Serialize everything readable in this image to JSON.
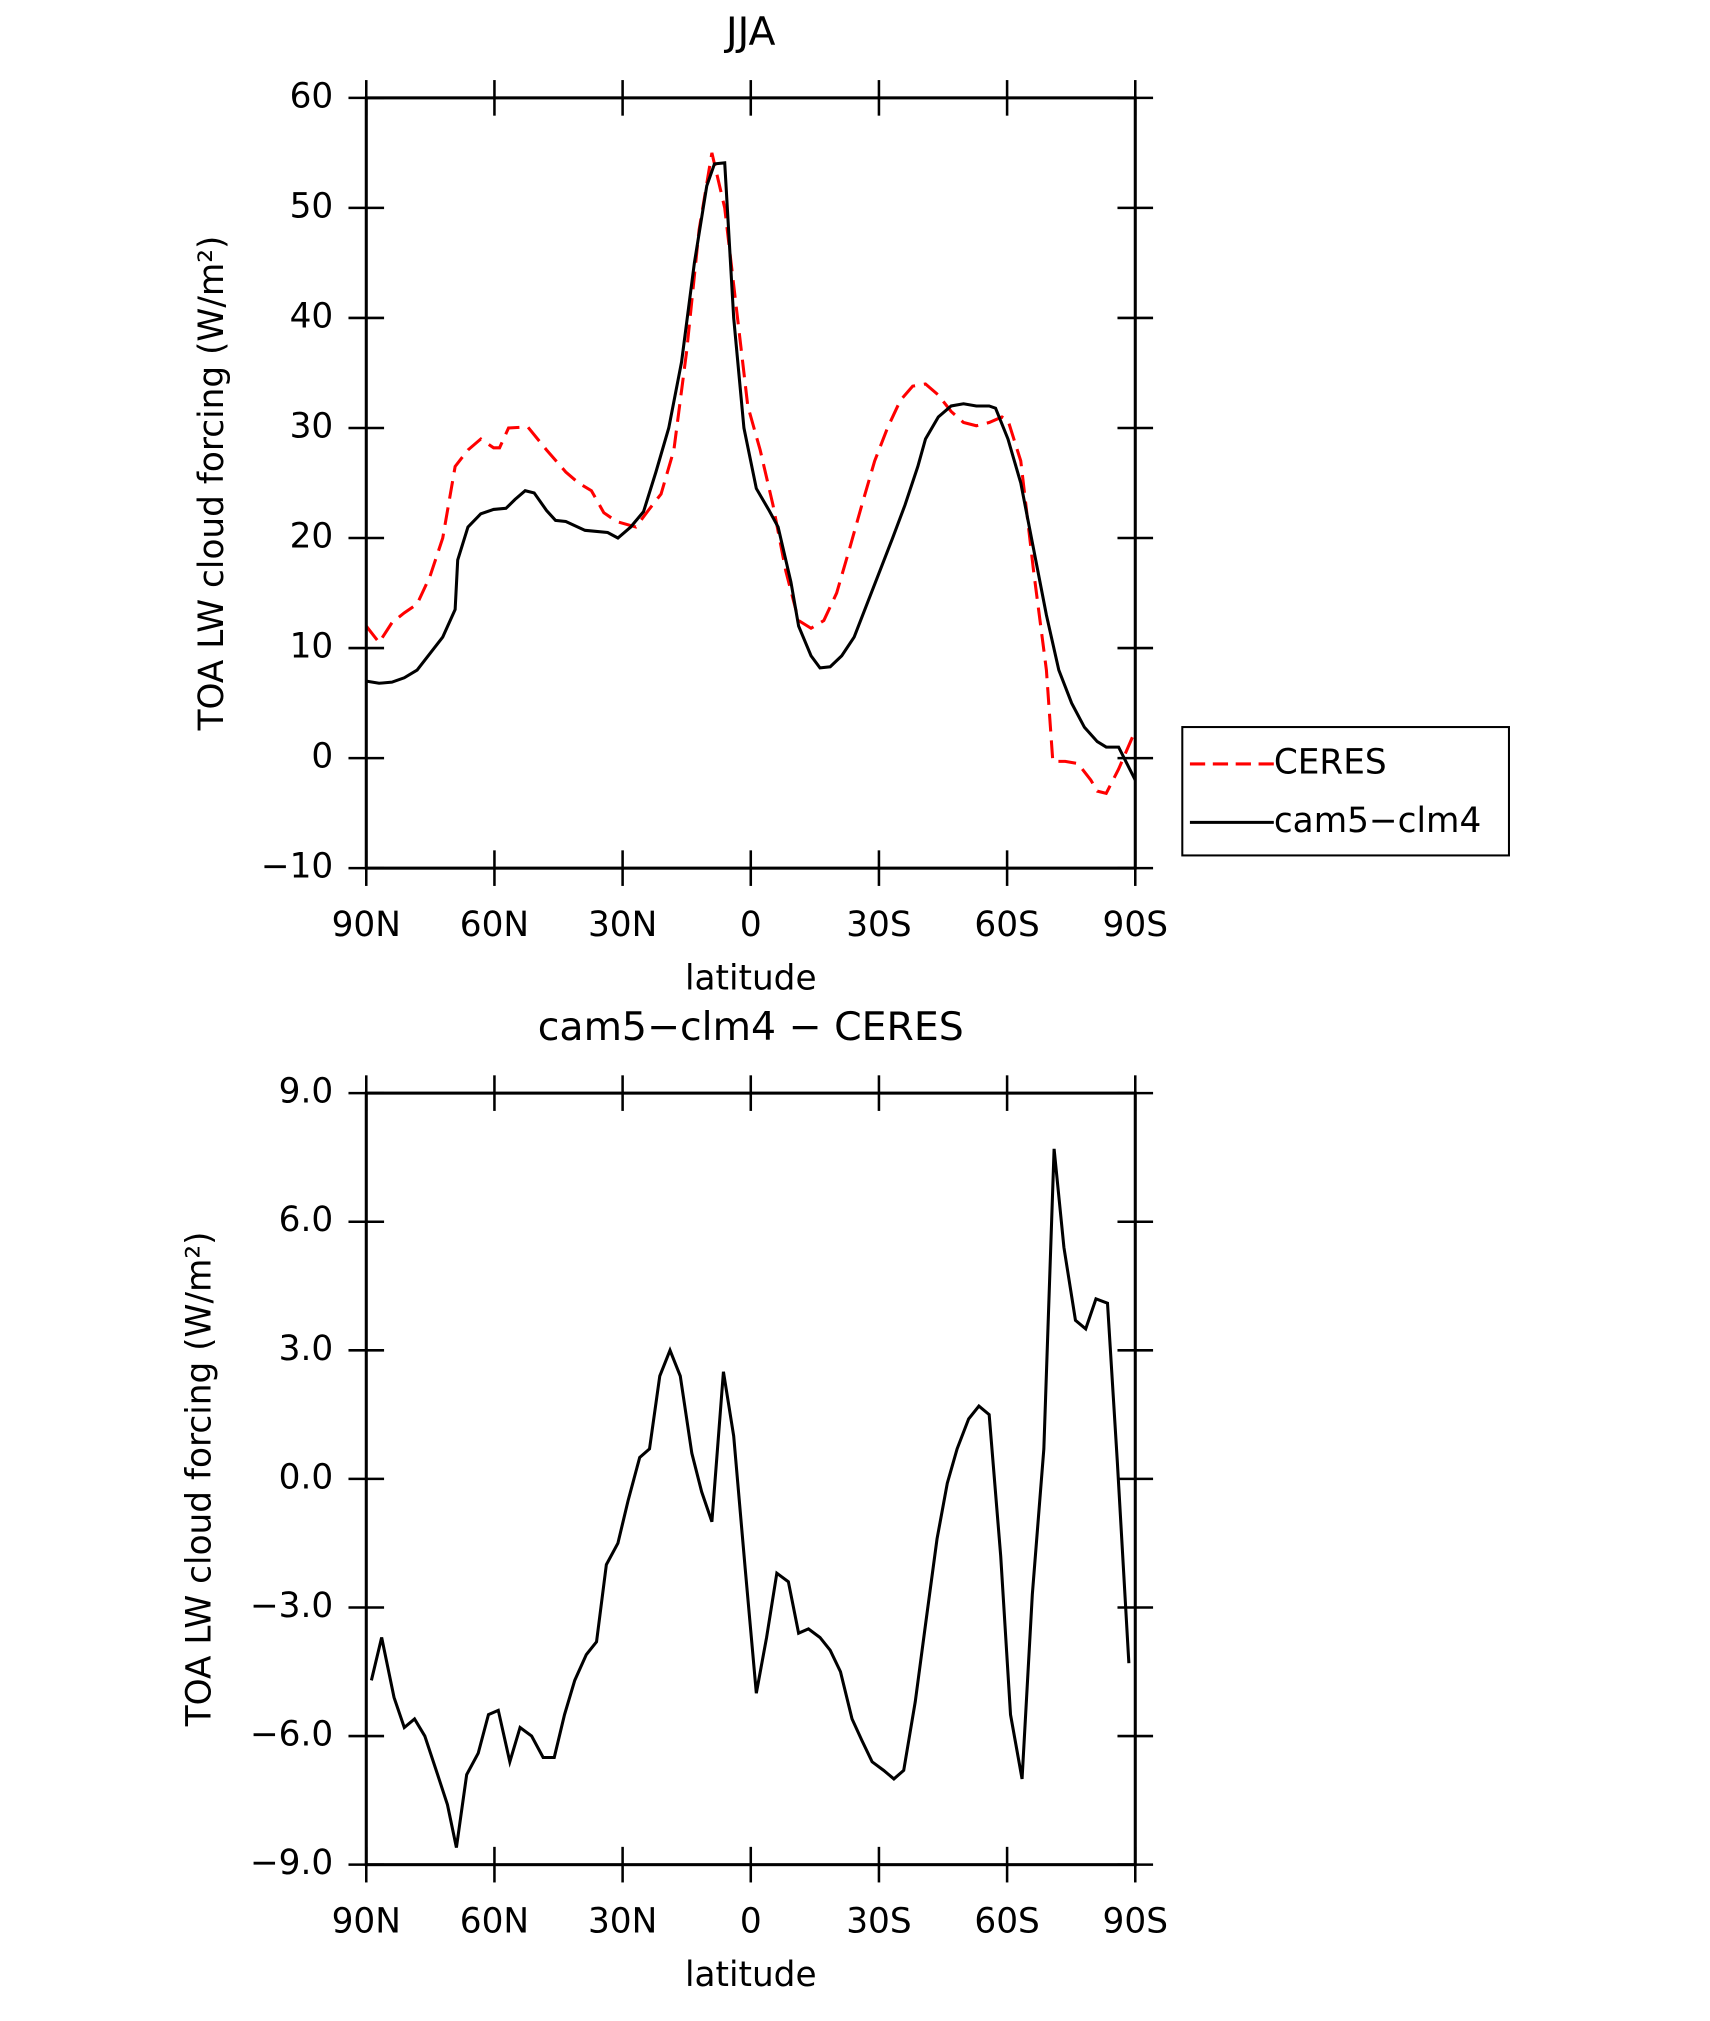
{
  "chart_data": [
    {
      "type": "line",
      "title": "JJA",
      "xlabel": "latitude",
      "ylabel": "TOA LW cloud forcing (W/m²)",
      "xlim": [
        90,
        -90
      ],
      "xticks": [
        {
          "value": 90,
          "label": "90N"
        },
        {
          "value": 60,
          "label": "60N"
        },
        {
          "value": 30,
          "label": "30N"
        },
        0,
        {
          "value": -30,
          "label": "30S"
        },
        {
          "value": -60,
          "label": "60S"
        },
        {
          "value": -90,
          "label": "90S"
        }
      ],
      "ylim": [
        -10,
        60
      ],
      "yticks": [
        {
          "value": -10,
          "label": "−10"
        },
        0,
        10,
        20,
        30,
        40,
        50,
        60
      ],
      "legend": "outside right",
      "series": [
        {
          "name": "CERES",
          "color": "#ff0000",
          "linestyle": "dashed",
          "x": [
            90,
            87.0,
            84.0,
            81.1,
            78.1,
            75.1,
            72.1,
            69.2,
            66.2,
            63.2,
            60.2,
            58.8,
            56.7,
            52.2,
            47.8,
            43.3,
            40.3,
            37.3,
            34.4,
            31.4,
            26.9,
            24.0,
            21.0,
            18.0,
            15.0,
            12.1,
            9.1,
            6.1,
            3.7,
            0.7,
            -2.2,
            -5.2,
            -8.2,
            -11.2,
            -14.1,
            -17.1,
            -20.1,
            -23.1,
            -26.0,
            -29.0,
            -32.0,
            -35.0,
            -37.9,
            -40.9,
            -43.9,
            -46.9,
            -49.8,
            -52.8,
            -55.8,
            -58.8,
            -60.2,
            -63.2,
            -66.2,
            -69.2,
            -70.7,
            -73.6,
            -76.6,
            -79.6,
            -81.1,
            -83.2,
            -86.1,
            -90
          ],
          "values": [
            12,
            10.5,
            12.3,
            13.2,
            14,
            16.5,
            20,
            26.5,
            28,
            29,
            28.2,
            28.2,
            30,
            30.1,
            28,
            26,
            25,
            24.3,
            22.3,
            21.5,
            21,
            22.5,
            24,
            28,
            37,
            48,
            55,
            50,
            42,
            32,
            28,
            23,
            17,
            12.5,
            11.8,
            12.5,
            15,
            19,
            23,
            27,
            30,
            32.5,
            33.8,
            34,
            33,
            31.5,
            30.5,
            30.2,
            30.5,
            31,
            30.7,
            27,
            17,
            8,
            -0.3,
            -0.3,
            -0.5,
            -2,
            -3,
            -3.2,
            -1,
            2.5
          ]
        },
        {
          "name": "cam5−clm4",
          "color": "#000000",
          "linestyle": "solid",
          "x": [
            90,
            87.0,
            84.0,
            81.1,
            78.1,
            75.1,
            72.1,
            69.2,
            68.6,
            66.2,
            63.2,
            60.2,
            57.3,
            55.2,
            52.8,
            50.7,
            47.8,
            45.7,
            43.3,
            38.8,
            33.5,
            31.1,
            28.1,
            25.1,
            22.2,
            19.2,
            16.2,
            13.2,
            10.3,
            8.5,
            6.1,
            4.0,
            1.6,
            -1.3,
            -4.3,
            -6.4,
            -9.4,
            -11.2,
            -14.1,
            -16.2,
            -18.6,
            -21.3,
            -24.2,
            -27.2,
            -30.2,
            -33.2,
            -36.1,
            -39.1,
            -40.9,
            -43.9,
            -46.9,
            -49.8,
            -52.8,
            -55.8,
            -57.3,
            -60.2,
            -63.2,
            -66.2,
            -69.2,
            -72.1,
            -75.1,
            -78.1,
            -81.1,
            -83.2,
            -86.1,
            -90
          ],
          "values": [
            7,
            6.8,
            6.9,
            7.3,
            8,
            9.5,
            11,
            13.5,
            18,
            21,
            22.2,
            22.6,
            22.7,
            23.5,
            24.3,
            24.1,
            22.5,
            21.6,
            21.5,
            20.7,
            20.5,
            20,
            21,
            22.4,
            26,
            30,
            36,
            45,
            52,
            54,
            54.1,
            40,
            30,
            24.5,
            22.5,
            21,
            16,
            12,
            9.3,
            8.2,
            8.3,
            9.3,
            11,
            14,
            17,
            20,
            23,
            26.5,
            29,
            31,
            32,
            32.2,
            32,
            32,
            31.8,
            29,
            25,
            19,
            13,
            8,
            5,
            2.8,
            1.5,
            1,
            1,
            -2
          ]
        }
      ]
    },
    {
      "type": "line",
      "title": "cam5−clm4 − CERES",
      "xlabel": "latitude",
      "ylabel": "TOA LW cloud forcing (W/m²)",
      "xlim": [
        90,
        -90
      ],
      "xticks": [
        {
          "value": 90,
          "label": "90N"
        },
        {
          "value": 60,
          "label": "60N"
        },
        {
          "value": 30,
          "label": "30N"
        },
        0,
        {
          "value": -30,
          "label": "30S"
        },
        {
          "value": -60,
          "label": "60S"
        },
        {
          "value": -90,
          "label": "90S"
        }
      ],
      "ylim": [
        -9,
        9
      ],
      "yticks": [
        {
          "value": -9,
          "label": "−9.0"
        },
        {
          "value": -6,
          "label": "−6.0"
        },
        {
          "value": -3,
          "label": "−3.0"
        },
        {
          "value": 0,
          "label": "0.0"
        },
        {
          "value": 3,
          "label": "3.0"
        },
        {
          "value": 6,
          "label": "6.0"
        },
        {
          "value": 9,
          "label": "9.0"
        }
      ],
      "series": [
        {
          "color": "#000000",
          "linestyle": "solid",
          "x": [
            88.8,
            86.4,
            83.5,
            81.1,
            78.7,
            76.3,
            73.3,
            71.0,
            68.9,
            66.5,
            63.8,
            61.4,
            59.1,
            56.4,
            54.0,
            51.3,
            48.6,
            46.0,
            43.6,
            41.2,
            38.5,
            36.1,
            33.8,
            31.1,
            28.7,
            26.0,
            23.7,
            21.3,
            18.9,
            16.5,
            13.8,
            11.5,
            9.1,
            6.4,
            4.0,
            1.3,
            -1.3,
            -3.7,
            -6.1,
            -8.8,
            -11.2,
            -13.5,
            -16.2,
            -18.6,
            -21.0,
            -23.7,
            -26.0,
            -28.4,
            -31.1,
            -33.5,
            -35.8,
            -38.5,
            -40.9,
            -43.6,
            -46.0,
            -48.3,
            -51.0,
            -53.4,
            -55.8,
            -58.5,
            -60.8,
            -63.5,
            -65.9,
            -68.6,
            -71.0,
            -73.3,
            -76.0,
            -78.4,
            -80.8,
            -83.5,
            -85.8,
            -88.5
          ],
          "values": [
            -4.7,
            -3.7,
            -5.1,
            -5.8,
            -5.6,
            -6,
            -6.9,
            -7.6,
            -8.6,
            -6.9,
            -6.4,
            -5.5,
            -5.4,
            -6.6,
            -5.8,
            -6,
            -6.5,
            -6.5,
            -5.5,
            -4.7,
            -4.1,
            -3.8,
            -2,
            -1.5,
            -0.5,
            0.5,
            0.7,
            2.4,
            3,
            2.4,
            0.6,
            -0.3,
            -1,
            2.5,
            1,
            -2.1,
            -5,
            -3.7,
            -2.2,
            -2.4,
            -3.6,
            -3.5,
            -3.7,
            -4,
            -4.5,
            -5.6,
            -6.1,
            -6.6,
            -6.8,
            -7,
            -6.8,
            -5.2,
            -3.4,
            -1.4,
            -0.1,
            0.7,
            1.4,
            1.7,
            1.5,
            -1.8,
            -5.5,
            -7,
            -2.7,
            0.7,
            7.7,
            5.4,
            3.7,
            3.5,
            4.2,
            4.1,
            0.4,
            -4.3
          ]
        }
      ]
    }
  ]
}
